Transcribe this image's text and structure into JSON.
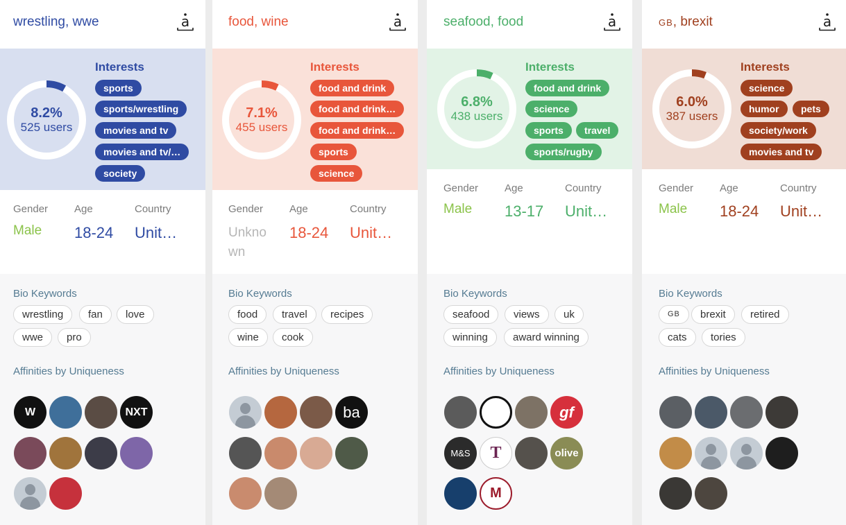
{
  "labels": {
    "interests": "Interests",
    "gender": "Gender",
    "age": "Age",
    "country": "Country",
    "bio_keywords": "Bio Keywords",
    "affinities": "Affinities by Uniqueness"
  },
  "cards": [
    {
      "title": "wrestling, wwe",
      "accent": "#2f4ba3",
      "panel_bg": "#d8dff0",
      "percent": "8.2%",
      "users": "525 users",
      "share": 0.082,
      "interests": [
        "sports",
        "sports/wrestling",
        "movies and tv",
        "movies and tv/…",
        "society"
      ],
      "gender": "Male",
      "age": "18-24",
      "country": "Unit…",
      "bio_keywords": [
        "wrestling",
        "fan",
        "love",
        "wwe",
        "pro"
      ],
      "affinities": [
        {
          "icon": "wwe-logo-avatar",
          "text": "W",
          "bg": "#111111"
        },
        {
          "icon": "wrestler-photo-avatar",
          "text": "",
          "bg": "#3f6f9a"
        },
        {
          "icon": "wrestler-photo-avatar",
          "text": "",
          "bg": "#5a4c44"
        },
        {
          "icon": "nxt-logo-avatar",
          "text": "NXT",
          "bg": "#111111"
        },
        {
          "icon": "wrestler-photo-avatar",
          "text": "",
          "bg": "#7a4a5a"
        },
        {
          "icon": "wrestler-photo-avatar",
          "text": "",
          "bg": "#a0743c"
        },
        {
          "icon": "wrestler-photo-avatar",
          "text": "",
          "bg": "#3c3c48"
        },
        {
          "icon": "wrestler-photo-avatar",
          "text": "",
          "bg": "#7e66a8"
        },
        {
          "icon": "default-user-avatar",
          "text": "",
          "bg": "placeholder"
        },
        {
          "icon": "flag-eagle-avatar",
          "text": "",
          "bg": "#c6313c"
        }
      ]
    },
    {
      "title": "food, wine",
      "accent": "#e8563b",
      "panel_bg": "#fae1d9",
      "percent": "7.1%",
      "users": "455 users",
      "share": 0.071,
      "interests": [
        "food and drink",
        "food and drink…",
        "food and drink…",
        "sports",
        "science"
      ],
      "gender": "Unknown",
      "age": "18-24",
      "country": "Unit…",
      "bio_keywords": [
        "food",
        "travel",
        "recipes",
        "wine",
        "cook"
      ],
      "affinities": [
        {
          "icon": "default-user-avatar",
          "text": "",
          "bg": "placeholder"
        },
        {
          "icon": "food-photo-avatar",
          "text": "",
          "bg": "#b5673f"
        },
        {
          "icon": "person-photo-avatar",
          "text": "",
          "bg": "#7b5a48"
        },
        {
          "icon": "ba-logo-avatar",
          "text": "ba",
          "bg": "#111111"
        },
        {
          "icon": "person-photo-avatar",
          "text": "",
          "bg": "#555555"
        },
        {
          "icon": "person-photo-avatar",
          "text": "",
          "bg": "#c98a6c"
        },
        {
          "icon": "person-photo-avatar",
          "text": "",
          "bg": "#d8aa94"
        },
        {
          "icon": "person-photo-avatar",
          "text": "",
          "bg": "#4f5a48"
        },
        {
          "icon": "person-photo-avatar",
          "text": "",
          "bg": "#c98b6e"
        },
        {
          "icon": "person-photo-avatar",
          "text": "",
          "bg": "#a48a76"
        }
      ]
    },
    {
      "title": "seafood, food",
      "accent": "#4caf6a",
      "panel_bg": "#e2f3e6",
      "percent": "6.8%",
      "users": "438 users",
      "share": 0.068,
      "interests": [
        "food and drink",
        "science",
        "sports",
        "travel",
        "sports/rugby"
      ],
      "gender": "Male",
      "age": "13-17",
      "country": "Unit…",
      "bio_keywords": [
        "seafood",
        "views",
        "uk",
        "winning",
        "award winning"
      ],
      "affinities": [
        {
          "icon": "person-photo-avatar",
          "text": "",
          "bg": "#5b5b5b"
        },
        {
          "icon": "swirl-logo-avatar",
          "text": "",
          "bg": "#ffffff"
        },
        {
          "icon": "person-photo-avatar",
          "text": "",
          "bg": "#7d7265"
        },
        {
          "icon": "bbc-good-food-logo-avatar",
          "text": "gf",
          "bg": "#d6303c"
        },
        {
          "icon": "ms-logo-avatar",
          "text": "M&S",
          "bg": "#2b2b2b"
        },
        {
          "icon": "t-logo-avatar",
          "text": "T",
          "bg": "#ffffff"
        },
        {
          "icon": "person-photo-avatar",
          "text": "",
          "bg": "#55514c"
        },
        {
          "icon": "olive-logo-avatar",
          "text": "olive",
          "bg": "#8a8c55"
        },
        {
          "icon": "cutlery-logo-avatar",
          "text": "",
          "bg": "#173f6c"
        },
        {
          "icon": "masterchef-logo-avatar",
          "text": "M",
          "bg": "#ffffff"
        }
      ]
    },
    {
      "title_caps": "GB",
      "title_rest": ", brexit",
      "accent": "#a0401f",
      "panel_bg": "#f0ddd5",
      "percent": "6.0%",
      "users": "387 users",
      "share": 0.06,
      "interests": [
        "science",
        "humor",
        "pets",
        "society/work",
        "movies and tv"
      ],
      "gender": "Male",
      "age": "18-24",
      "country": "Unit…",
      "bio_keywords": [
        "GB",
        "brexit",
        "retired",
        "cats",
        "tories"
      ],
      "affinities": [
        {
          "icon": "person-photo-avatar",
          "text": "",
          "bg": "#5b5f64"
        },
        {
          "icon": "person-photo-avatar",
          "text": "",
          "bg": "#4b5968"
        },
        {
          "icon": "person-photo-avatar",
          "text": "",
          "bg": "#6b6d70"
        },
        {
          "icon": "person-photo-avatar",
          "text": "",
          "bg": "#3d3a37"
        },
        {
          "icon": "person-photo-avatar",
          "text": "",
          "bg": "#c28c48"
        },
        {
          "icon": "default-user-avatar",
          "text": "",
          "bg": "placeholder"
        },
        {
          "icon": "default-user-avatar",
          "text": "",
          "bg": "placeholder"
        },
        {
          "icon": "person-photo-avatar",
          "text": "",
          "bg": "#1e1e1e"
        },
        {
          "icon": "person-photo-avatar",
          "text": "",
          "bg": "#3a3835"
        },
        {
          "icon": "person-photo-avatar",
          "text": "",
          "bg": "#4d463f"
        }
      ]
    }
  ]
}
